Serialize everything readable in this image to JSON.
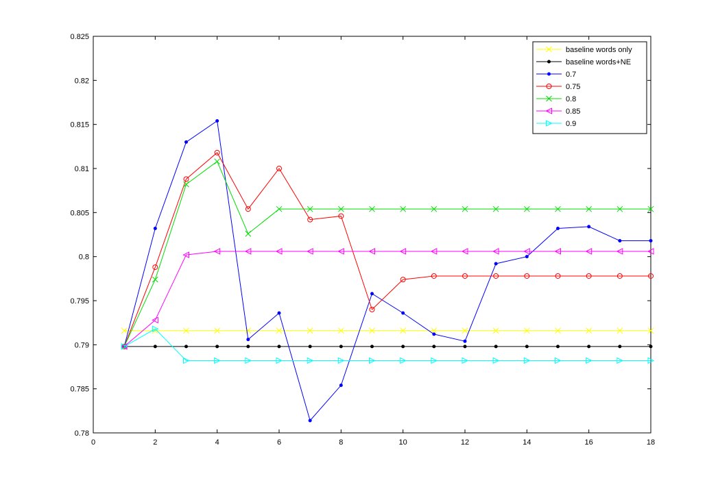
{
  "chart_data": {
    "type": "line",
    "title": "",
    "xlabel": "",
    "ylabel": "",
    "xlim": [
      0,
      18
    ],
    "ylim": [
      0.78,
      0.825
    ],
    "x_ticks": [
      "0",
      "2",
      "4",
      "6",
      "8",
      "10",
      "12",
      "14",
      "16",
      "18"
    ],
    "y_ticks": [
      "0.78",
      "0.785",
      "0.79",
      "0.795",
      "0.8",
      "0.805",
      "0.81",
      "0.815",
      "0.82",
      "0.825"
    ],
    "grid": false,
    "legend_position": "top-right",
    "x": [
      1,
      2,
      3,
      4,
      5,
      6,
      7,
      8,
      9,
      10,
      11,
      12,
      13,
      14,
      15,
      16,
      17,
      18
    ],
    "series": [
      {
        "name": "baseline words only",
        "color": "#ffff00",
        "marker": "x",
        "values": [
          0.7916,
          0.7916,
          0.7916,
          0.7916,
          0.7916,
          0.7916,
          0.7916,
          0.7916,
          0.7916,
          0.7916,
          0.7916,
          0.7916,
          0.7916,
          0.7916,
          0.7916,
          0.7916,
          0.7916,
          0.7916
        ]
      },
      {
        "name": "baseline words+NE",
        "color": "#000000",
        "marker": "dot",
        "values": [
          0.7898,
          0.7898,
          0.7898,
          0.7898,
          0.7898,
          0.7898,
          0.7898,
          0.7898,
          0.7898,
          0.7898,
          0.7898,
          0.7898,
          0.7898,
          0.7898,
          0.7898,
          0.7898,
          0.7898,
          0.7898
        ]
      },
      {
        "name": "0.7",
        "color": "#0000ff",
        "marker": "dot",
        "values": [
          0.7898,
          0.8032,
          0.813,
          0.8154,
          0.7906,
          0.7936,
          0.7814,
          0.7854,
          0.7958,
          0.7936,
          0.7912,
          0.7904,
          0.7992,
          0.8,
          0.8032,
          0.8034,
          0.8018,
          0.8018
        ]
      },
      {
        "name": "0.75",
        "color": "#ff0000",
        "marker": "circle",
        "values": [
          0.7898,
          0.7988,
          0.8088,
          0.8118,
          0.8054,
          0.81,
          0.8042,
          0.8046,
          0.794,
          0.7974,
          0.7978,
          0.7978,
          0.7978,
          0.7978,
          0.7978,
          0.7978,
          0.7978,
          0.7978
        ]
      },
      {
        "name": "0.8",
        "color": "#00dd00",
        "marker": "x",
        "values": [
          0.7898,
          0.7974,
          0.8082,
          0.8108,
          0.8026,
          0.8054,
          0.8054,
          0.8054,
          0.8054,
          0.8054,
          0.8054,
          0.8054,
          0.8054,
          0.8054,
          0.8054,
          0.8054,
          0.8054,
          0.8054
        ]
      },
      {
        "name": "0.85",
        "color": "#ff00ff",
        "marker": "triangle-left",
        "values": [
          0.7898,
          0.7928,
          0.8002,
          0.8006,
          0.8006,
          0.8006,
          0.8006,
          0.8006,
          0.8006,
          0.8006,
          0.8006,
          0.8006,
          0.8006,
          0.8006,
          0.8006,
          0.8006,
          0.8006,
          0.8006
        ]
      },
      {
        "name": "0.9",
        "color": "#00ffff",
        "marker": "triangle-right",
        "values": [
          0.7898,
          0.7918,
          0.7882,
          0.7882,
          0.7882,
          0.7882,
          0.7882,
          0.7882,
          0.7882,
          0.7882,
          0.7882,
          0.7882,
          0.7882,
          0.7882,
          0.7882,
          0.7882,
          0.7882,
          0.7882
        ]
      }
    ]
  }
}
